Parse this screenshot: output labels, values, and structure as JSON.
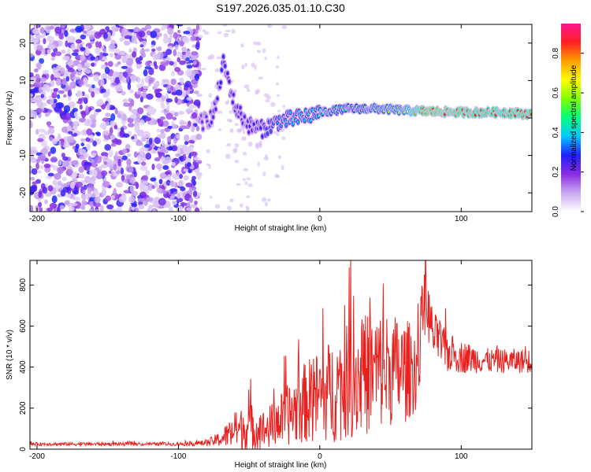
{
  "chart_data": [
    {
      "type": "heatmap",
      "title": "S197.2026.035.01.10.C30",
      "xlabel": "Height of straight line (km)",
      "ylabel": "Frequency (Hz)",
      "xlim": [
        -205,
        150
      ],
      "ylim": [
        -25,
        25
      ],
      "x_ticks": [
        -200,
        -100,
        0,
        100
      ],
      "x_tick_labels": [
        "-200",
        "-100",
        "0",
        "100"
      ],
      "y_ticks": [
        -20,
        -10,
        0,
        10,
        20
      ],
      "y_tick_labels": [
        "-20",
        "-10",
        "0",
        "10",
        "20"
      ],
      "colorbar": {
        "label": "Normalized spectral amplitude",
        "range": [
          0,
          0.95
        ],
        "ticks": [
          0,
          0.2,
          0.4,
          0.6,
          0.8
        ],
        "tick_labels": [
          "0.0",
          "0.2",
          "0.4",
          "0.6",
          "0.8"
        ],
        "colormap": [
          "#ffffff",
          "#c8a8f0",
          "#8a2be2",
          "#2020ff",
          "#00c8ff",
          "#00ff80",
          "#80ff00",
          "#ffff00",
          "#ffa000",
          "#ff2020",
          "#ff1493"
        ]
      },
      "description_points": {
        "noise_region_x": [
          -205,
          -85
        ],
        "signal_track": [
          {
            "x": -85,
            "f": -1.5,
            "a": 0.2
          },
          {
            "x": -75,
            "f": 0.5,
            "a": 0.25
          },
          {
            "x": -68,
            "f": 15,
            "a": 0.3
          },
          {
            "x": -60,
            "f": 3,
            "a": 0.25
          },
          {
            "x": -50,
            "f": -2,
            "a": 0.25
          },
          {
            "x": -40,
            "f": -3,
            "a": 0.3
          },
          {
            "x": -30,
            "f": -1,
            "a": 0.35
          },
          {
            "x": -15,
            "f": 0,
            "a": 0.4
          },
          {
            "x": 0,
            "f": 1.5,
            "a": 0.45
          },
          {
            "x": 20,
            "f": 2.5,
            "a": 0.5
          },
          {
            "x": 40,
            "f": 2.5,
            "a": 0.55
          },
          {
            "x": 60,
            "f": 2,
            "a": 0.6
          },
          {
            "x": 75,
            "f": 1.8,
            "a": 0.95
          },
          {
            "x": 100,
            "f": 1.5,
            "a": 0.9
          },
          {
            "x": 130,
            "f": 1.5,
            "a": 0.85
          },
          {
            "x": 150,
            "f": 1.0,
            "a": 0.9
          }
        ]
      }
    },
    {
      "type": "line",
      "xlabel": "Height of straight line (km)",
      "ylabel": "SNR (10 * v/v)",
      "xlim": [
        -205,
        150
      ],
      "ylim": [
        0,
        920
      ],
      "x_ticks": [
        -200,
        -100,
        0,
        100
      ],
      "x_tick_labels": [
        "-200",
        "-100",
        "0",
        "100"
      ],
      "y_ticks": [
        0,
        200,
        400,
        600,
        800
      ],
      "y_tick_labels": [
        "0",
        "200",
        "400",
        "600",
        "800"
      ],
      "series": [
        {
          "name": "SNR",
          "color": "#e8201e",
          "envelope_x": [
            -205,
            -150,
            -100,
            -80,
            -70,
            -60,
            -50,
            -40,
            -30,
            -20,
            -10,
            0,
            10,
            20,
            30,
            40,
            50,
            60,
            70,
            72,
            75,
            80,
            90,
            100,
            110,
            120,
            130,
            140,
            150
          ],
          "envelope_center": [
            25,
            25,
            25,
            30,
            50,
            90,
            110,
            90,
            130,
            180,
            230,
            260,
            290,
            330,
            360,
            380,
            390,
            380,
            400,
            650,
            720,
            560,
            470,
            450,
            440,
            430,
            430,
            430,
            430
          ],
          "envelope_amplitude": [
            8,
            8,
            8,
            15,
            40,
            90,
            120,
            100,
            120,
            160,
            200,
            230,
            260,
            280,
            300,
            300,
            280,
            260,
            200,
            150,
            160,
            120,
            100,
            80,
            70,
            60,
            60,
            60,
            60
          ]
        }
      ]
    }
  ]
}
